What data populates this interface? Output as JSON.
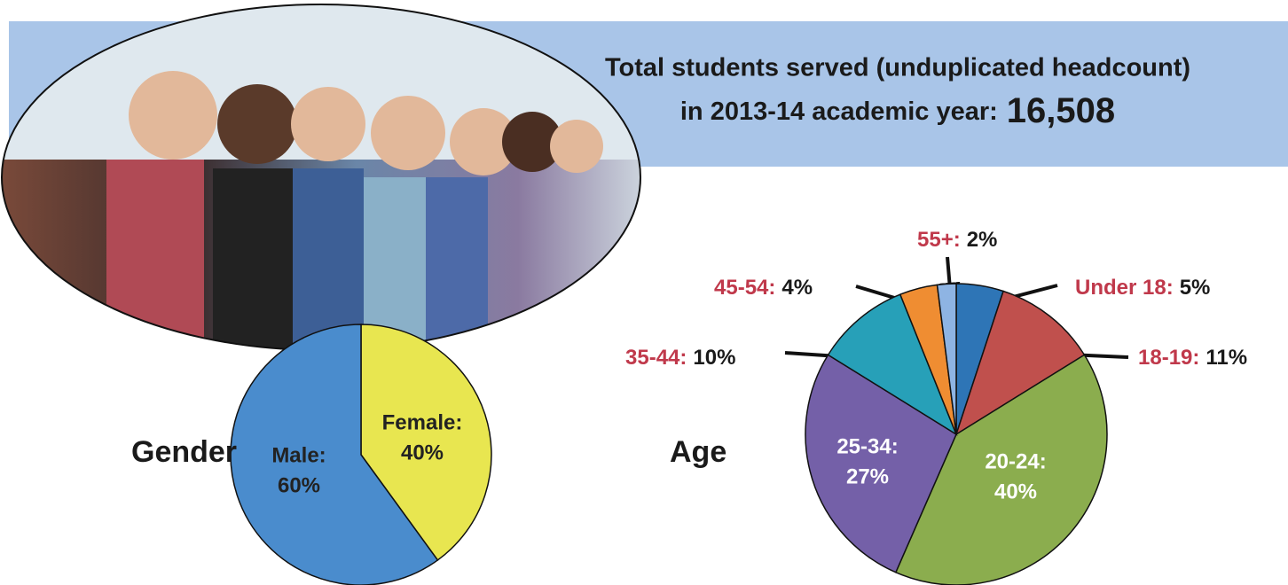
{
  "banner": {
    "line1": "Total students served (unduplicated headcount)",
    "line2": "in 2013-14 academic year:",
    "total": "16,508"
  },
  "chart_data": [
    {
      "type": "pie",
      "title": "Gender",
      "categories": [
        "Female:",
        "Male:"
      ],
      "values": [
        40,
        60
      ],
      "value_labels": [
        "40%",
        "60%"
      ],
      "colors": [
        "#e8e650",
        "#4a8ccd"
      ]
    },
    {
      "type": "pie",
      "title": "Age",
      "categories": [
        "Under 18:",
        "18-19:",
        "20-24:",
        "25-34:",
        "35-44:",
        "45-54:",
        "55+:"
      ],
      "values": [
        5,
        11,
        40,
        27,
        10,
        4,
        2
      ],
      "value_labels": [
        "5%",
        "11%",
        "40%",
        "27%",
        "10%",
        "4%",
        "2%"
      ],
      "colors": [
        "#2e75b6",
        "#c0504d",
        "#8bad4e",
        "#7460a8",
        "#27a0b8",
        "#ef8d32",
        "#8eb4e3"
      ]
    }
  ]
}
